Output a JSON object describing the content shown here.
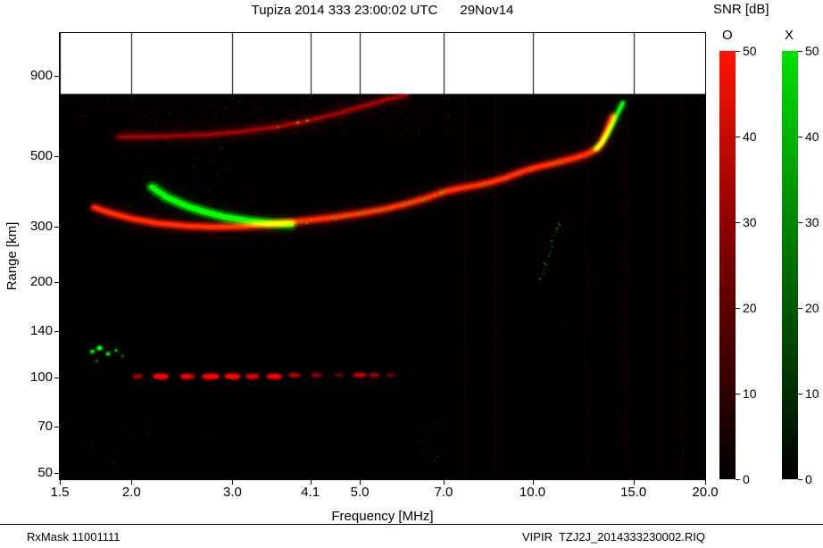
{
  "header": {
    "title": "Tupiza 2014 333 23:00:02 UTC      29Nov14"
  },
  "footer": {
    "left": "RxMask 11001111",
    "right": "VIPIR  TZJ2J_2014333230002.RIQ"
  },
  "chart_data": {
    "type": "heatmap",
    "subtype": "ionogram",
    "title": "Tupiza 2014 333 23:00:02 UTC 29Nov14",
    "xlabel": "Frequency [MHz]",
    "ylabel": "Range [km]",
    "x_scale": "log",
    "y_scale": "log",
    "x_range": [
      1.5,
      20.0
    ],
    "y_range": [
      47.8,
      1225
    ],
    "x_ticks": [
      1.5,
      2.0,
      3.0,
      4.1,
      5.0,
      7.0,
      10.0,
      15.0,
      20.0
    ],
    "x_tick_labels": [
      "1.5",
      "2.0",
      "3.0",
      "4.1",
      "5.0",
      "7.0",
      "10.0",
      "15.0",
      "20.0"
    ],
    "y_ticks": [
      50,
      70,
      100,
      140,
      200,
      300,
      500,
      900
    ],
    "data_top_km": 787,
    "background": {
      "data": "#000000",
      "above": "#ffffff"
    },
    "colorbar": {
      "title": "SNR [dB]",
      "min": 0,
      "max": 50,
      "ticks": [
        0,
        10,
        20,
        30,
        40,
        50
      ],
      "series": [
        {
          "name": "O",
          "color": "#ff1400",
          "mid": "#800000"
        },
        {
          "name": "X",
          "color": "#00e000",
          "mid": "#007a00"
        }
      ]
    },
    "traces": [
      {
        "name": "F-region O-mode echo",
        "color": "#ff1a00",
        "width": 4,
        "blur": 5,
        "alpha": 1.0,
        "points": [
          [
            1.72,
            345
          ],
          [
            1.85,
            330
          ],
          [
            2.0,
            318
          ],
          [
            2.2,
            308
          ],
          [
            2.5,
            301
          ],
          [
            2.8,
            299
          ],
          [
            3.1,
            300
          ],
          [
            3.5,
            305
          ],
          [
            4.0,
            313
          ],
          [
            4.5,
            321
          ],
          [
            5.0,
            330
          ],
          [
            5.5,
            340
          ],
          [
            6.0,
            353
          ],
          [
            6.5,
            368
          ],
          [
            7.0,
            386
          ],
          [
            7.5,
            397
          ],
          [
            8.0,
            405
          ],
          [
            8.5,
            415
          ],
          [
            9.0,
            428
          ],
          [
            9.5,
            445
          ],
          [
            10.0,
            458
          ],
          [
            10.5,
            468
          ],
          [
            11.0,
            477
          ],
          [
            11.5,
            487
          ],
          [
            12.0,
            497
          ],
          [
            12.5,
            510
          ],
          [
            13.0,
            530
          ],
          [
            13.2,
            552
          ],
          [
            13.4,
            585
          ],
          [
            13.6,
            625
          ],
          [
            13.8,
            668
          ]
        ]
      },
      {
        "name": "F-region X-mode echo low freq",
        "color": "#00e600",
        "width": 5,
        "blur": 4,
        "alpha": 0.95,
        "points": [
          [
            2.17,
            400
          ],
          [
            2.3,
            372
          ],
          [
            2.5,
            348
          ],
          [
            2.7,
            333
          ],
          [
            2.9,
            322
          ],
          [
            3.2,
            313
          ],
          [
            3.5,
            307
          ],
          [
            3.8,
            305
          ]
        ]
      },
      {
        "name": "X-mode speckle along trace",
        "color": "#00dd00",
        "width": 2,
        "blur": 2,
        "alpha": 0.85,
        "speckle": true,
        "density": 0.45,
        "points": [
          [
            3.8,
            307
          ],
          [
            4.2,
            314
          ],
          [
            4.6,
            322
          ],
          [
            5.0,
            332
          ],
          [
            5.5,
            343
          ],
          [
            6.0,
            356
          ],
          [
            6.5,
            371
          ],
          [
            7.0,
            389
          ],
          [
            7.4,
            397
          ]
        ]
      },
      {
        "name": "X-mode speckle high freq",
        "color": "#00cc00",
        "width": 2,
        "blur": 2,
        "alpha": 0.7,
        "speckle": true,
        "density": 0.18,
        "points": [
          [
            7.6,
            402
          ],
          [
            8.2,
            410
          ],
          [
            9.0,
            428
          ],
          [
            9.8,
            450
          ],
          [
            10.6,
            468
          ],
          [
            11.4,
            484
          ],
          [
            12.2,
            500
          ],
          [
            12.7,
            515
          ]
        ]
      },
      {
        "name": "X-mode critical tail",
        "color": "#00e600",
        "width": 3,
        "blur": 4,
        "alpha": 0.95,
        "points": [
          [
            12.9,
            528
          ],
          [
            13.2,
            550
          ],
          [
            13.5,
            588
          ],
          [
            13.8,
            635
          ],
          [
            14.05,
            680
          ],
          [
            14.25,
            715
          ],
          [
            14.38,
            738
          ]
        ]
      },
      {
        "name": "second-hop echo",
        "color": "#c00000",
        "width": 4,
        "blur": 8,
        "alpha": 0.5,
        "points": [
          [
            1.9,
            575
          ],
          [
            2.3,
            578
          ],
          [
            2.7,
            585
          ],
          [
            3.1,
            598
          ],
          [
            3.6,
            620
          ],
          [
            4.1,
            650
          ],
          [
            4.6,
            685
          ],
          [
            5.1,
            722
          ],
          [
            5.6,
            758
          ],
          [
            6.05,
            783
          ]
        ]
      },
      {
        "name": "E-region echo band",
        "color": "#d40000",
        "blobs": [
          [
            2.05,
            101,
            6,
            2.5,
            0.45
          ],
          [
            2.25,
            101,
            9,
            3,
            0.75
          ],
          [
            2.5,
            101,
            8,
            3,
            0.65
          ],
          [
            2.75,
            101,
            10,
            3,
            0.8
          ],
          [
            3.0,
            101,
            9,
            3,
            0.8
          ],
          [
            3.25,
            101,
            8,
            3,
            0.6
          ],
          [
            3.55,
            101,
            9,
            3,
            0.7
          ],
          [
            3.85,
            102,
            7,
            2.5,
            0.5
          ],
          [
            4.2,
            102,
            6,
            2.5,
            0.4
          ],
          [
            4.6,
            102,
            5,
            2,
            0.3
          ],
          [
            5.0,
            102,
            8,
            2.5,
            0.55
          ],
          [
            5.3,
            102,
            6,
            2.5,
            0.45
          ],
          [
            5.65,
            102,
            5,
            2,
            0.3
          ]
        ]
      },
      {
        "name": "low-altitude green patch",
        "color": "#00cc00",
        "blobs": [
          [
            1.71,
            121,
            2.5,
            2,
            0.85
          ],
          [
            1.76,
            124,
            3,
            2.5,
            0.9
          ],
          [
            1.82,
            119,
            2.5,
            2,
            0.8
          ],
          [
            1.88,
            122,
            2,
            1.5,
            0.7
          ],
          [
            1.93,
            117,
            1.5,
            1.5,
            0.5
          ],
          [
            1.74,
            113,
            1.5,
            1.5,
            0.5
          ]
        ]
      },
      {
        "name": "oblique green streak",
        "color": "#00bb00",
        "width": 2,
        "blur": 2,
        "alpha": 0.8,
        "speckle": true,
        "density": 0.55,
        "points": [
          [
            10.3,
            206
          ],
          [
            10.5,
            232
          ],
          [
            10.7,
            258
          ],
          [
            10.9,
            283
          ],
          [
            11.1,
            306
          ]
        ]
      },
      {
        "name": "green specks on second hop",
        "color": "#00cc00",
        "blobs": [
          [
            3.9,
            638,
            1.5,
            1,
            0.8
          ],
          [
            4.05,
            648,
            1.5,
            1,
            0.7
          ],
          [
            3.6,
            618,
            1,
            1,
            0.6
          ]
        ]
      }
    ],
    "noise": {
      "seed": 20141129,
      "regions": [
        {
          "f": [
            1.6,
            7.2
          ],
          "km": [
            580,
            780
          ],
          "count": 1500,
          "color": "#ff3020",
          "max_alpha": 0.3
        },
        {
          "f": [
            1.55,
            19.8
          ],
          "km": [
            48,
            785
          ],
          "count": 10000,
          "color": "#ff0000",
          "max_alpha": 0.15
        },
        {
          "f": [
            1.55,
            19.8
          ],
          "km": [
            48,
            785
          ],
          "count": 1000,
          "color": "#00ff00",
          "max_alpha": 0.12
        },
        {
          "f": [
            1.9,
            3.2
          ],
          "km": [
            300,
            560
          ],
          "count": 160,
          "color": "#00dd00",
          "max_alpha": 0.45
        },
        {
          "f": [
            7.5,
            13.0
          ],
          "km": [
            470,
            630
          ],
          "count": 500,
          "color": "#e00000",
          "max_alpha": 0.22
        },
        {
          "f": [
            6.3,
            7.0
          ],
          "km": [
            50,
            80
          ],
          "count": 70,
          "color": "#00cc00",
          "max_alpha": 0.4
        },
        {
          "f": [
            1.7,
            2.2
          ],
          "km": [
            52,
            75
          ],
          "count": 60,
          "color": "#00bb00",
          "max_alpha": 0.4
        },
        {
          "f": [
            1.8,
            6.0
          ],
          "km": [
            250,
            420
          ],
          "count": 900,
          "color": "#ff1010",
          "max_alpha": 0.2
        }
      ],
      "rfi_lines": [
        7.6,
        8.6,
        12.4,
        14.6,
        16.5,
        18.2
      ],
      "random_streaks": 40
    }
  }
}
